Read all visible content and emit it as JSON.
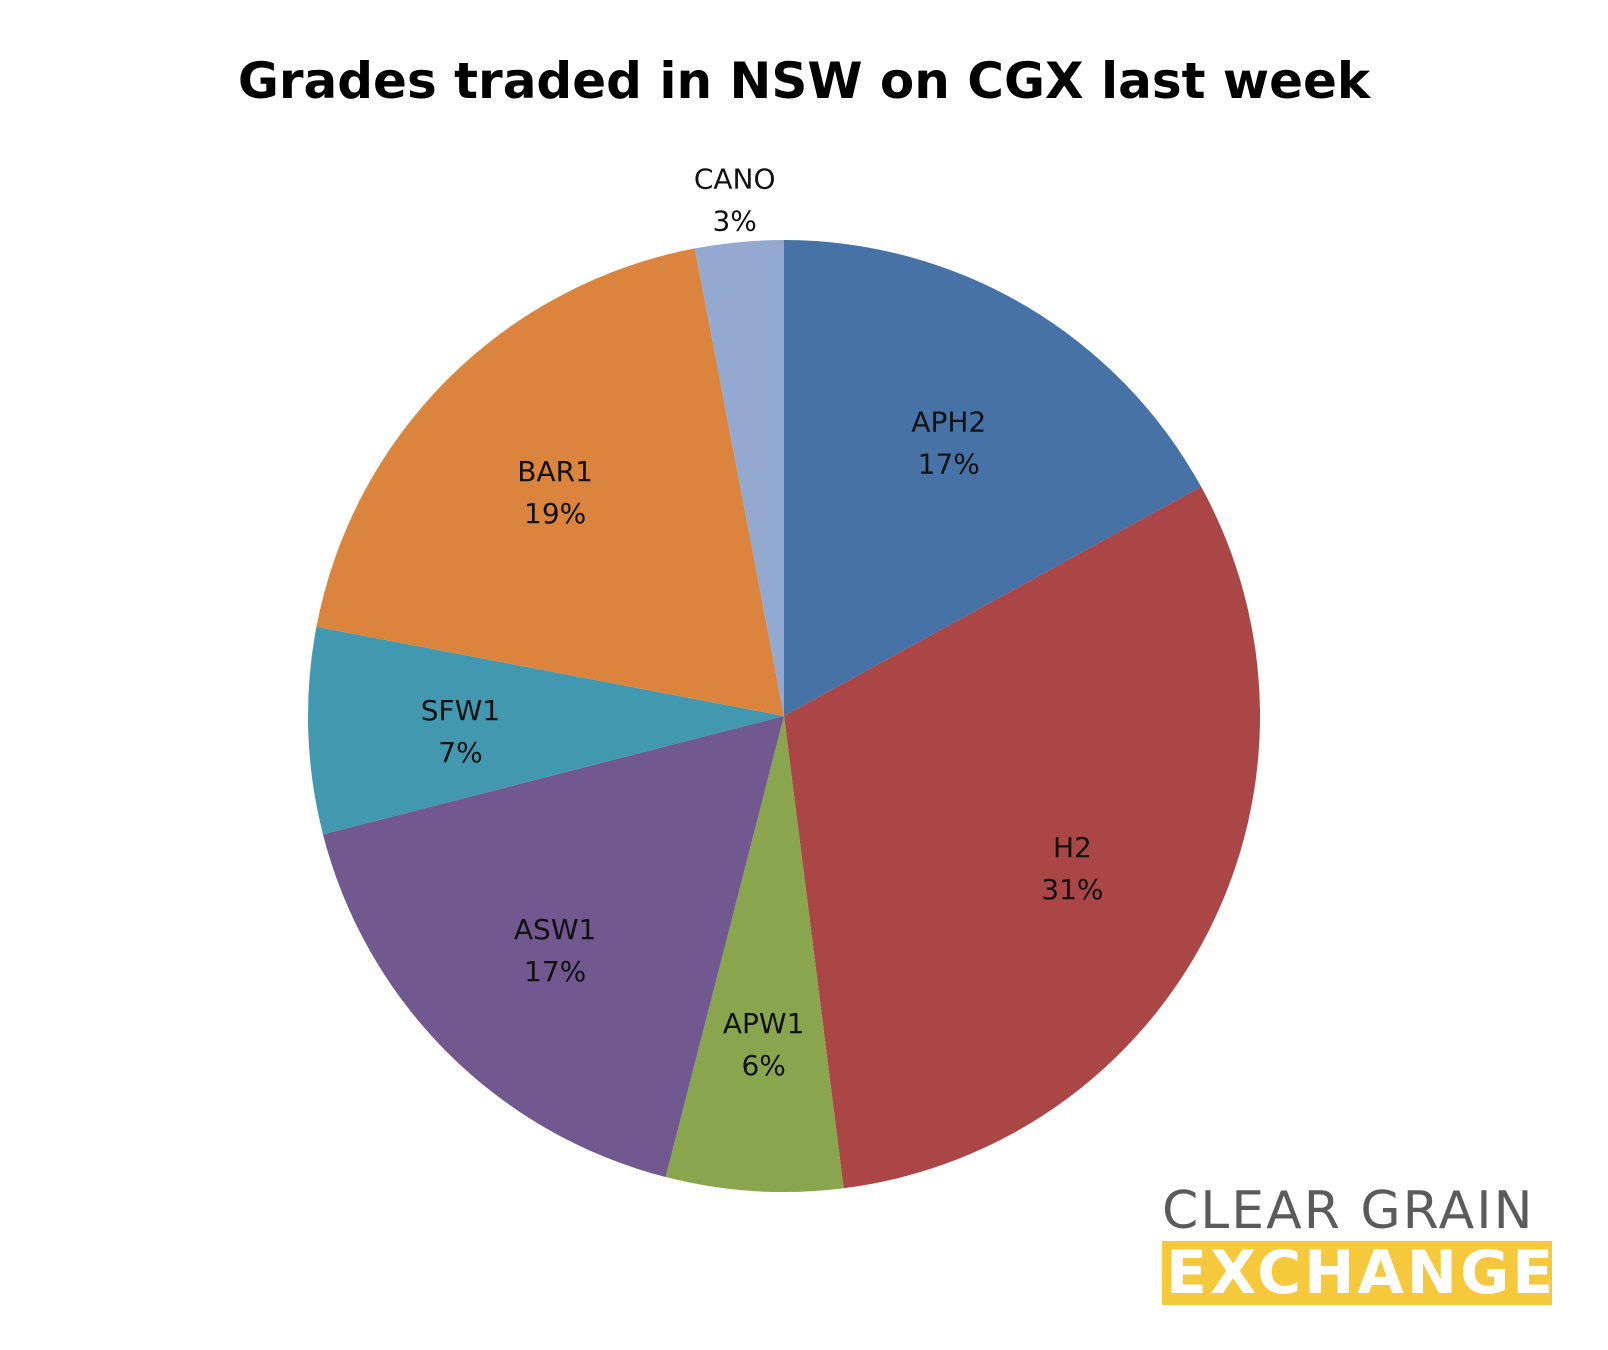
{
  "chart_data": {
    "type": "pie",
    "title": "Grades traded in NSW on CGX last week",
    "slices": [
      {
        "label": "APH2",
        "value": 17,
        "value_text": "17%",
        "color": "#4672a6"
      },
      {
        "label": "H2",
        "value": 31,
        "value_text": "31%",
        "color": "#aa4645"
      },
      {
        "label": "APW1",
        "value": 6,
        "value_text": "6%",
        "color": "#89a54e"
      },
      {
        "label": "ASW1",
        "value": 17,
        "value_text": "17%",
        "color": "#71588f"
      },
      {
        "label": "SFW1",
        "value": 7,
        "value_text": "7%",
        "color": "#4298ae"
      },
      {
        "label": "BAR1",
        "value": 19,
        "value_text": "19%",
        "color": "#db843d"
      },
      {
        "label": "CANO",
        "value": 3,
        "value_text": "3%",
        "color": "#93a9d0"
      }
    ],
    "start_angle": "12 o'clock",
    "direction": "clockwise",
    "legend": "none"
  },
  "logo": {
    "line1": "CLEAR GRAIN",
    "line2": "EXCHANGE",
    "text_color": "#5b5b5b",
    "band_color": "#f6c83b"
  }
}
